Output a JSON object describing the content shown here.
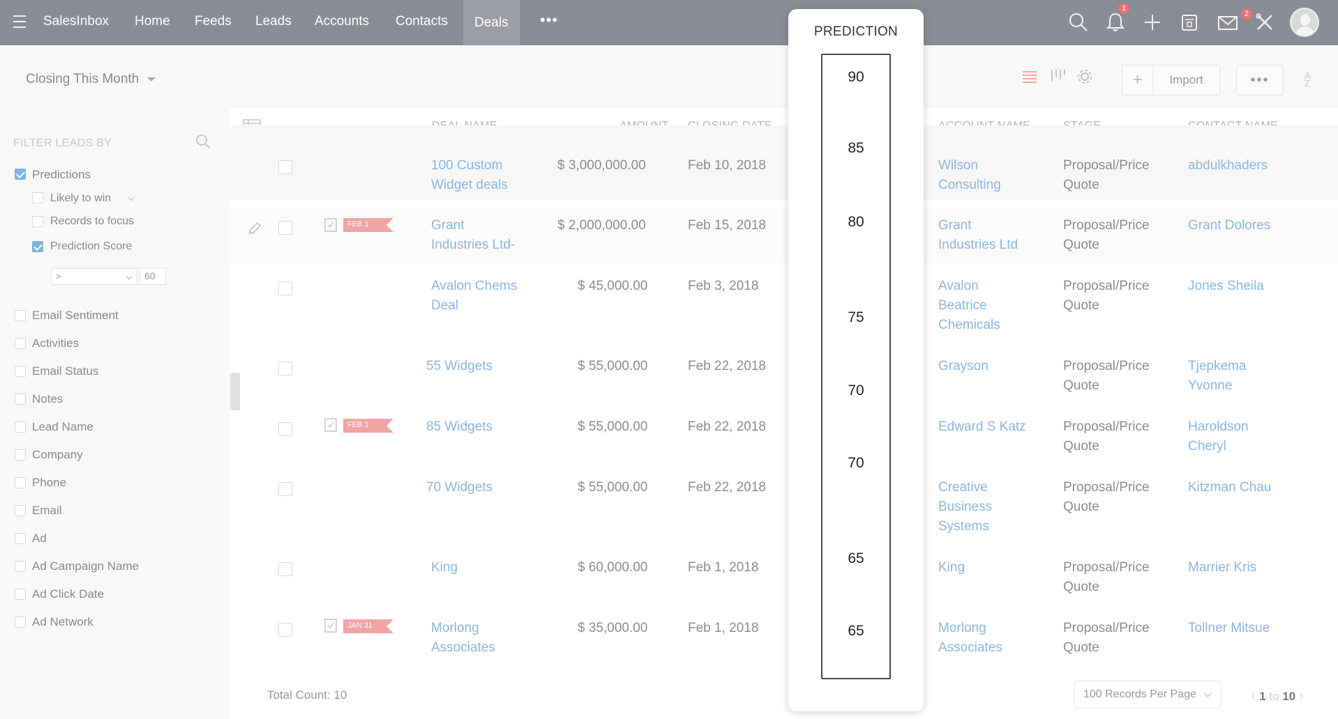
{
  "nav": {
    "brand": "SalesInbox",
    "items": [
      "Home",
      "Feeds",
      "Leads",
      "Accounts",
      "Contacts",
      "Deals"
    ],
    "more": "•••",
    "notifications_badge": "1",
    "mail_badge": "2"
  },
  "toolbar": {
    "view_label": "Closing This Month",
    "import_label": "Import",
    "more_label": "•••"
  },
  "filters": {
    "title": "FILTER LEADS BY",
    "predictions_label": "Predictions",
    "sub_items": [
      "Likely to win",
      "Records to focus",
      "Prediction Score"
    ],
    "score_operator": ">",
    "score_value": "60",
    "items": [
      "Email Sentiment",
      "Activities",
      "Email Status",
      "Notes",
      "Lead Name",
      "Company",
      "Phone",
      "Email",
      "Ad",
      "Ad Campaign Name",
      "Ad Click Date",
      "Ad Network"
    ]
  },
  "table": {
    "headers": {
      "deal_name": "DEAL NAME",
      "amount": "AMOUNT",
      "closing_date": "CLOSING DATE",
      "account_name": "ACCOUNT NAME",
      "stage": "STAGE",
      "contact_name": "CONTACT NAME"
    },
    "rows": [
      {
        "deal": [
          "100 Custom",
          "Widget deals"
        ],
        "amount": "$ 3,000,000.00",
        "date": "Feb 10, 2018",
        "account": [
          "Wilson",
          "Consulting"
        ],
        "stage": [
          "Proposal/Price",
          "Quote"
        ],
        "contact": [
          "abdulkhaders"
        ],
        "tag": ""
      },
      {
        "deal": [
          "Grant",
          "Industries Ltd-"
        ],
        "amount": "$ 2,000,000.00",
        "date": "Feb 15, 2018",
        "account": [
          "Grant",
          "Industries Ltd"
        ],
        "stage": [
          "Proposal/Price",
          "Quote"
        ],
        "contact": [
          "Grant Dolores"
        ],
        "tag": "FEB 1"
      },
      {
        "deal": [
          "Avalon Chems",
          "Deal"
        ],
        "amount": "$ 45,000.00",
        "date": "Feb 3, 2018",
        "account": [
          "Avalon",
          "Beatrice",
          "Chemicals"
        ],
        "stage": [
          "Proposal/Price",
          "Quote"
        ],
        "contact": [
          "Jones Sheila"
        ],
        "tag": ""
      },
      {
        "deal": [
          "55 Widgets"
        ],
        "amount": "$ 55,000.00",
        "date": "Feb 22, 2018",
        "account": [
          "Grayson"
        ],
        "stage": [
          "Proposal/Price",
          "Quote"
        ],
        "contact": [
          "Tjepkema",
          "Yvonne"
        ],
        "tag": ""
      },
      {
        "deal": [
          "85 Widgets"
        ],
        "amount": "$ 55,000.00",
        "date": "Feb 22, 2018",
        "account": [
          "Edward S Katz"
        ],
        "stage": [
          "Proposal/Price",
          "Quote"
        ],
        "contact": [
          "Haroldson",
          "Cheryl"
        ],
        "tag": "FEB 1"
      },
      {
        "deal": [
          "70 Widgets"
        ],
        "amount": "$ 55,000.00",
        "date": "Feb 22, 2018",
        "account": [
          "Creative",
          "Business",
          "Systems"
        ],
        "stage": [
          "Proposal/Price",
          "Quote"
        ],
        "contact": [
          "Kitzman Chau"
        ],
        "tag": ""
      },
      {
        "deal": [
          "King"
        ],
        "amount": "$ 60,000.00",
        "date": "Feb 1, 2018",
        "account": [
          "King"
        ],
        "stage": [
          "Proposal/Price",
          "Quote"
        ],
        "contact": [
          "Marrier Kris"
        ],
        "tag": ""
      },
      {
        "deal": [
          "Morlong",
          "Associates"
        ],
        "amount": "$ 35,000.00",
        "date": "Feb 1, 2018",
        "account": [
          "Morlong",
          "Associates"
        ],
        "stage": [
          "Proposal/Price",
          "Quote"
        ],
        "contact": [
          "Tollner Mitsue"
        ],
        "tag": "JAN 31"
      }
    ],
    "total_count": "Total Count: 10",
    "per_page": "100 Records Per Page",
    "pager_start": "1",
    "pager_to": "to",
    "pager_end": "10"
  },
  "prediction": {
    "title": "PREDICTION",
    "values": [
      "90",
      "85",
      "80",
      "75",
      "70",
      "70",
      "65",
      "65"
    ]
  },
  "colors": {
    "nav_bg": "#8a8d95",
    "link": "#8ab6e0",
    "tag": "#f1a5a5",
    "check": "#7fb3e0"
  }
}
